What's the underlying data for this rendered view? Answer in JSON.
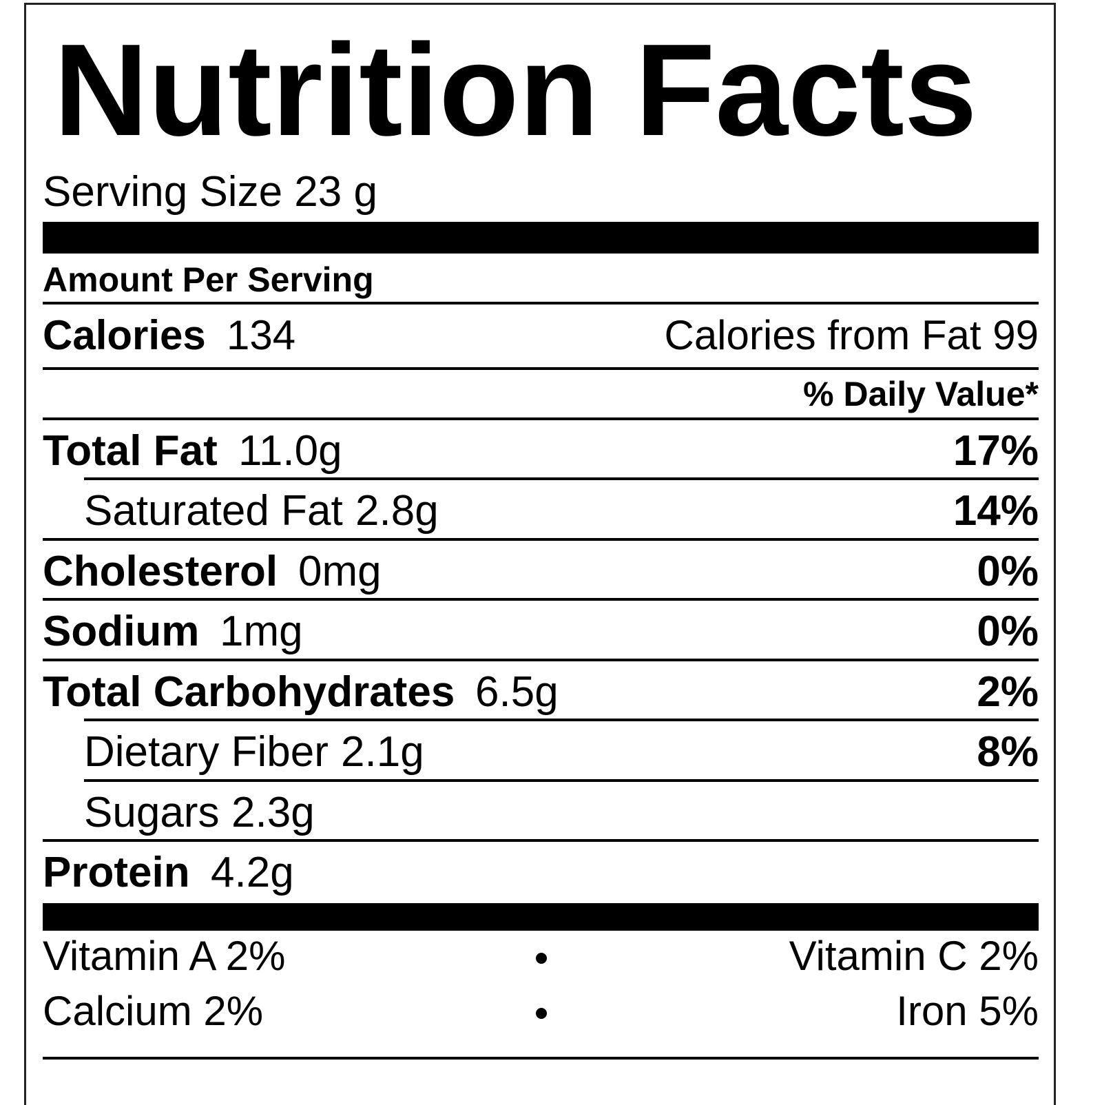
{
  "title": "Nutrition Facts",
  "serving_size": "Serving Size 23 g",
  "amount_per_serving": "Amount Per Serving",
  "calories": {
    "label": "Calories",
    "value": "134",
    "from_fat": "Calories from Fat 99"
  },
  "daily_value_header": "% Daily Value*",
  "nutrients": [
    {
      "name": "Total Fat",
      "amount": "11.0g",
      "dv": "17%",
      "sub": [
        {
          "name": "Saturated Fat",
          "amount": "2.8g",
          "dv": "14%"
        }
      ]
    },
    {
      "name": "Cholesterol",
      "amount": "0mg",
      "dv": "0%"
    },
    {
      "name": "Sodium",
      "amount": "1mg",
      "dv": "0%"
    },
    {
      "name": "Total Carbohydrates",
      "amount": "6.5g",
      "dv": "2%",
      "sub": [
        {
          "name": "Dietary Fiber",
          "amount": "2.1g",
          "dv": "8%"
        },
        {
          "name": "Sugars",
          "amount": "2.3g"
        }
      ]
    },
    {
      "name": "Protein",
      "amount": "4.2g"
    }
  ],
  "vitamins": [
    [
      "Vitamin A 2%",
      "Vitamin C 2%"
    ],
    [
      "Calcium 2%",
      "Iron 5%"
    ]
  ]
}
